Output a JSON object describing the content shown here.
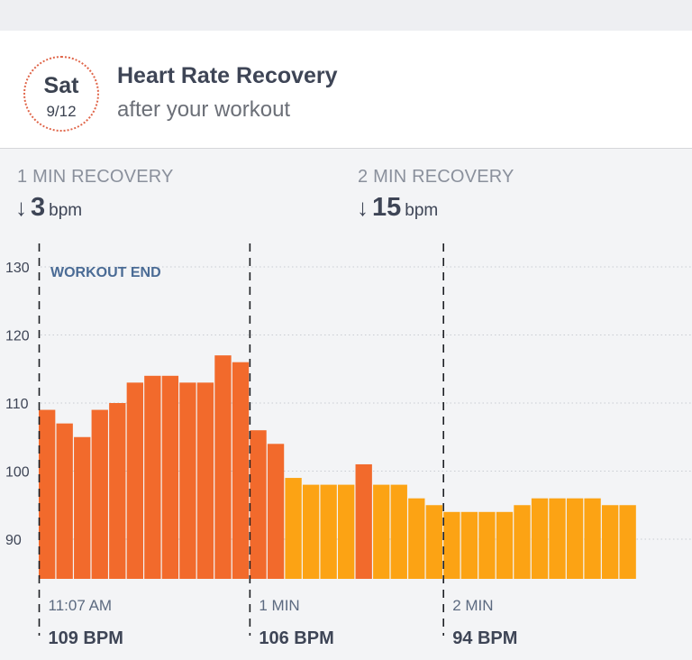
{
  "header": {
    "day": "Sat",
    "date": "9/12",
    "title": "Heart Rate Recovery",
    "subtitle": "after your workout"
  },
  "recovery": {
    "one_min": {
      "label": "1 MIN RECOVERY",
      "arrow": "↓",
      "value": "3",
      "unit": "bpm"
    },
    "two_min": {
      "label": "2 MIN RECOVERY",
      "arrow": "↓",
      "value": "15",
      "unit": "bpm"
    }
  },
  "colors": {
    "workout_bar": "#f26a2c",
    "recovery_bar": "#fca314",
    "text_dark": "#3e4556",
    "workout_end_label": "#4a6b95"
  },
  "chart_data": {
    "type": "bar",
    "ylim": [
      84.5,
      132
    ],
    "yticks": [
      90,
      100,
      110,
      120,
      130
    ],
    "grid": true,
    "annotation": "WORKOUT END",
    "values": [
      109,
      107,
      105,
      109,
      110,
      113,
      114,
      114,
      113,
      113,
      117,
      116,
      106,
      104,
      99,
      98,
      98,
      98,
      101,
      98,
      98,
      96,
      95,
      94,
      94,
      94,
      94,
      95,
      96,
      96,
      96,
      96,
      95,
      95
    ],
    "highlight": [
      true,
      true,
      true,
      true,
      true,
      true,
      true,
      true,
      true,
      true,
      true,
      true,
      true,
      true,
      false,
      false,
      false,
      false,
      true,
      false,
      false,
      false,
      false,
      false,
      false,
      false,
      false,
      false,
      false,
      false,
      false,
      false,
      false,
      false
    ],
    "markers": [
      {
        "index": 0,
        "label": "11:07 AM",
        "bpm": "109 BPM"
      },
      {
        "index": 12,
        "label": "1 MIN",
        "bpm": "106 BPM"
      },
      {
        "index": 23,
        "label": "2 MIN",
        "bpm": "94 BPM"
      }
    ]
  }
}
